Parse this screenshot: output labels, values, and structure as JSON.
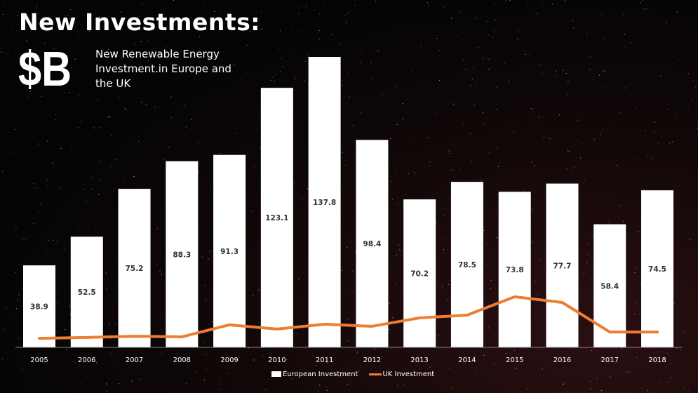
{
  "header": {
    "title": "New Investments:",
    "unit": "$B",
    "subtitle": "New Renewable Energy Investment.in Europe and the UK"
  },
  "chart_data": {
    "type": "bar",
    "categories": [
      "2005",
      "2006",
      "2007",
      "2008",
      "2009",
      "2010",
      "2011",
      "2012",
      "2013",
      "2014",
      "2015",
      "2016",
      "2017",
      "2018"
    ],
    "series": [
      {
        "name": "European Investment",
        "kind": "bar",
        "color": "#ffffff",
        "values": [
          38.9,
          52.5,
          75.2,
          88.3,
          91.3,
          123.1,
          137.8,
          98.4,
          70.2,
          78.5,
          73.8,
          77.7,
          58.4,
          74.5
        ]
      },
      {
        "name": "UK Investment",
        "kind": "line",
        "color": "#ed7d31",
        "values": [
          4.3,
          4.7,
          5.3,
          5.0,
          10.7,
          8.7,
          11.0,
          10.0,
          14.0,
          15.3,
          24.0,
          21.3,
          7.3,
          7.3
        ]
      }
    ],
    "ylim": [
      0,
      140
    ],
    "grid": false,
    "legend": "bottom",
    "data_labels": true
  }
}
